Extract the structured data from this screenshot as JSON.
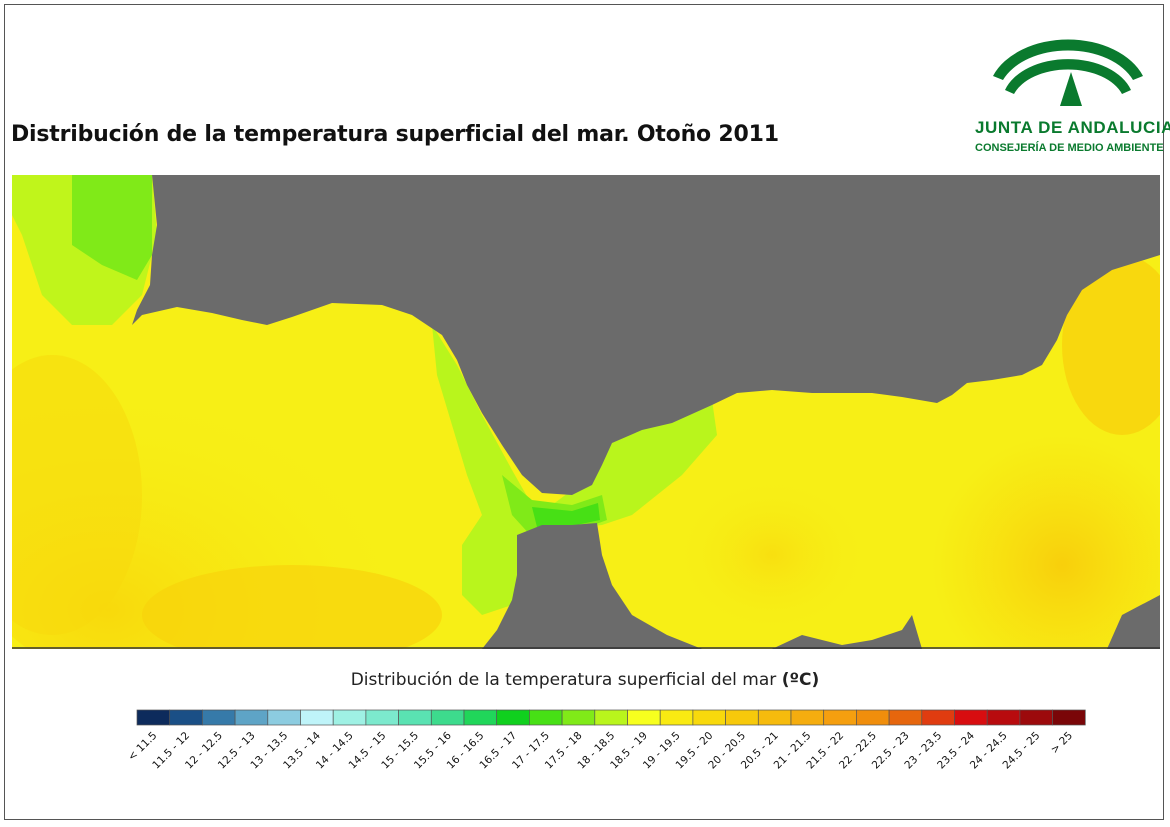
{
  "title": "Distribución de la temperatura superficial del mar. Otoño 2011",
  "logo": {
    "name": "JUNTA DE ANDALUCIA",
    "department": "CONSEJERÍA DE MEDIO AMBIENTE"
  },
  "legend": {
    "title": "Distribución de la temperatura superficial del mar",
    "unit": "(ºC)",
    "classes": [
      {
        "label": "< 11.5",
        "color": "#0d2b5c"
      },
      {
        "label": "11.5 - 12",
        "color": "#1a4f86"
      },
      {
        "label": "12 - 12.5",
        "color": "#367aa9"
      },
      {
        "label": "12.5 - 13",
        "color": "#5ea4c6"
      },
      {
        "label": "13 - 13.5",
        "color": "#8ccce0"
      },
      {
        "label": "13.5 - 14",
        "color": "#bff4f9"
      },
      {
        "label": "14 - 14.5",
        "color": "#9ff1e4"
      },
      {
        "label": "14.5 - 15",
        "color": "#7ce9cd"
      },
      {
        "label": "15 - 15.5",
        "color": "#5ae2b2"
      },
      {
        "label": "15.5 - 16",
        "color": "#3ddb8d"
      },
      {
        "label": "16 - 16.5",
        "color": "#20d65a"
      },
      {
        "label": "16.5 - 17",
        "color": "#10d01e"
      },
      {
        "label": "17 - 17.5",
        "color": "#47e015"
      },
      {
        "label": "17.5 - 18",
        "color": "#80ea18"
      },
      {
        "label": "18 - 18.5",
        "color": "#b9f51c"
      },
      {
        "label": "18.5 - 19",
        "color": "#f7ff1e"
      },
      {
        "label": "19 - 19.5",
        "color": "#f9ea12"
      },
      {
        "label": "19.5 - 20",
        "color": "#f8d90c"
      },
      {
        "label": "20 - 20.5",
        "color": "#f7c90b"
      },
      {
        "label": "20.5 - 21",
        "color": "#f6bb0d"
      },
      {
        "label": "21 - 21.5",
        "color": "#f5ad0f"
      },
      {
        "label": "21.5 - 22",
        "color": "#f59f0f"
      },
      {
        "label": "22 - 22.5",
        "color": "#f08e0c"
      },
      {
        "label": "22.5 - 23",
        "color": "#e6660d"
      },
      {
        "label": "23 - 23.5",
        "color": "#e03c10"
      },
      {
        "label": "23.5 - 24",
        "color": "#d80d10"
      },
      {
        "label": "24 - 24.5",
        "color": "#b80b0e"
      },
      {
        "label": "24.5 - 25",
        "color": "#9c0a0c"
      },
      {
        "label": "> 25",
        "color": "#7a0608"
      }
    ]
  },
  "colors": {
    "land": "#6b6b6b",
    "sea_warm": "#f8d90c",
    "sea_base": "#f7ef16",
    "sea_cool": "#b9f51c",
    "sea_green": "#80ea18",
    "sea_strait": "#47e015",
    "logo_green": "#0a7a2e"
  }
}
